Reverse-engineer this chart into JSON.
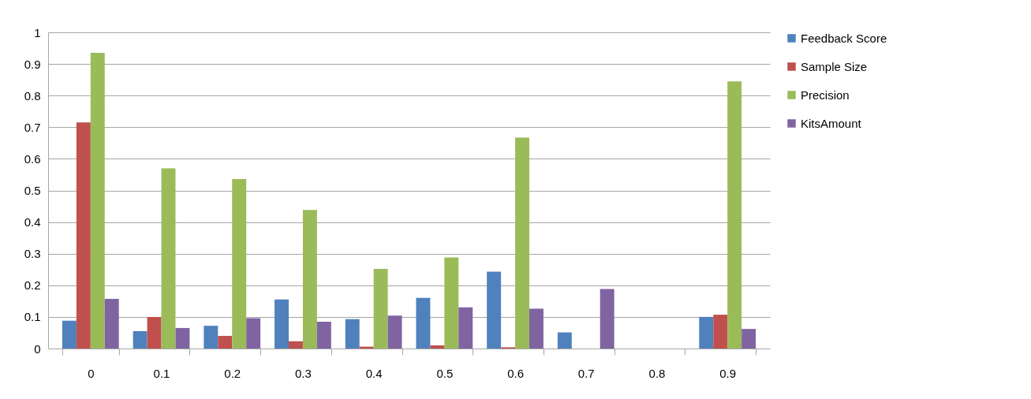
{
  "chart_data": {
    "type": "bar",
    "categories": [
      "0",
      "0.1",
      "0.2",
      "0.3",
      "0.4",
      "0.5",
      "0.6",
      "0.7",
      "0.8",
      "0.9"
    ],
    "series": [
      {
        "name": "Feedback Score",
        "color": "#4f81bd",
        "values": [
          0.088,
          0.055,
          0.072,
          0.155,
          0.093,
          0.16,
          0.243,
          0.051,
          0,
          0.1
        ]
      },
      {
        "name": "Sample Size",
        "color": "#c0504d",
        "values": [
          0.715,
          0.1,
          0.04,
          0.023,
          0.006,
          0.01,
          0.004,
          0,
          0,
          0.107
        ]
      },
      {
        "name": "Precision",
        "color": "#9bbb59",
        "values": [
          0.935,
          0.57,
          0.536,
          0.438,
          0.252,
          0.288,
          0.667,
          0,
          0,
          0.845
        ]
      },
      {
        "name": "KitsAmount",
        "color": "#8064a2",
        "values": [
          0.157,
          0.065,
          0.096,
          0.085,
          0.104,
          0.13,
          0.126,
          0.188,
          0,
          0.062
        ]
      }
    ],
    "ylim": [
      0,
      1
    ],
    "yticks": [
      0,
      0.1,
      0.2,
      0.3,
      0.4,
      0.5,
      0.6,
      0.7,
      0.8,
      0.9,
      1
    ],
    "grid": "y",
    "legend": "right"
  }
}
